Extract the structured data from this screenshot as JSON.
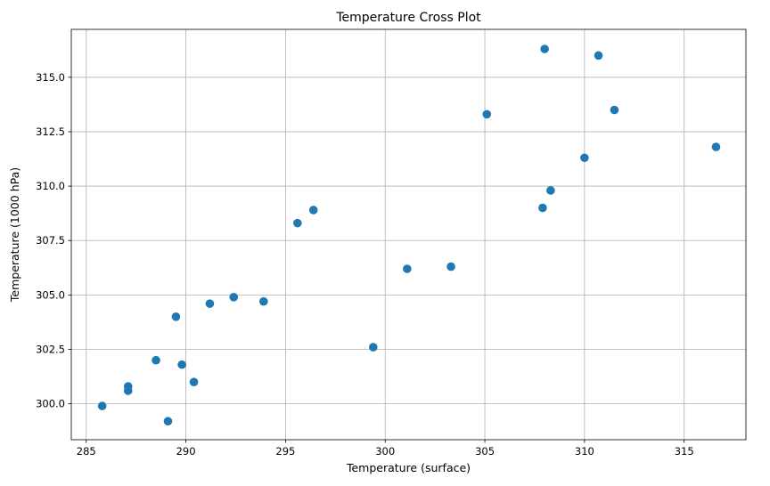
{
  "chart_data": {
    "type": "scatter",
    "title": "Temperature Cross Plot",
    "xlabel": "Temperature (surface)",
    "ylabel": "Temperature (1000 hPa)",
    "xlim": [
      284.25,
      318.1
    ],
    "ylim": [
      298.35,
      317.2
    ],
    "xticks": [
      285,
      290,
      295,
      300,
      305,
      310,
      315
    ],
    "xtick_labels": [
      "285",
      "290",
      "295",
      "300",
      "305",
      "310",
      "315"
    ],
    "yticks": [
      300.0,
      302.5,
      305.0,
      307.5,
      310.0,
      312.5,
      315.0
    ],
    "ytick_labels": [
      "300.0",
      "302.5",
      "305.0",
      "307.5",
      "310.0",
      "312.5",
      "315.0"
    ],
    "grid": true,
    "marker_color": "#1f77b4",
    "grid_color": "#b0b0b0",
    "series": [
      {
        "points": [
          {
            "x": 285.8,
            "y": 299.9
          },
          {
            "x": 287.1,
            "y": 300.8
          },
          {
            "x": 287.1,
            "y": 300.6
          },
          {
            "x": 288.5,
            "y": 302.0
          },
          {
            "x": 289.1,
            "y": 299.2
          },
          {
            "x": 289.5,
            "y": 304.0
          },
          {
            "x": 289.8,
            "y": 301.8
          },
          {
            "x": 290.4,
            "y": 301.0
          },
          {
            "x": 291.2,
            "y": 304.6
          },
          {
            "x": 292.4,
            "y": 304.9
          },
          {
            "x": 293.9,
            "y": 304.7
          },
          {
            "x": 295.6,
            "y": 308.3
          },
          {
            "x": 296.4,
            "y": 308.9
          },
          {
            "x": 299.4,
            "y": 302.6
          },
          {
            "x": 301.1,
            "y": 306.2
          },
          {
            "x": 303.3,
            "y": 306.3
          },
          {
            "x": 305.1,
            "y": 313.3
          },
          {
            "x": 307.9,
            "y": 309.0
          },
          {
            "x": 308.0,
            "y": 316.3
          },
          {
            "x": 308.3,
            "y": 309.8
          },
          {
            "x": 310.0,
            "y": 311.3
          },
          {
            "x": 310.7,
            "y": 316.0
          },
          {
            "x": 311.5,
            "y": 313.5
          },
          {
            "x": 316.6,
            "y": 311.8
          }
        ]
      }
    ]
  }
}
